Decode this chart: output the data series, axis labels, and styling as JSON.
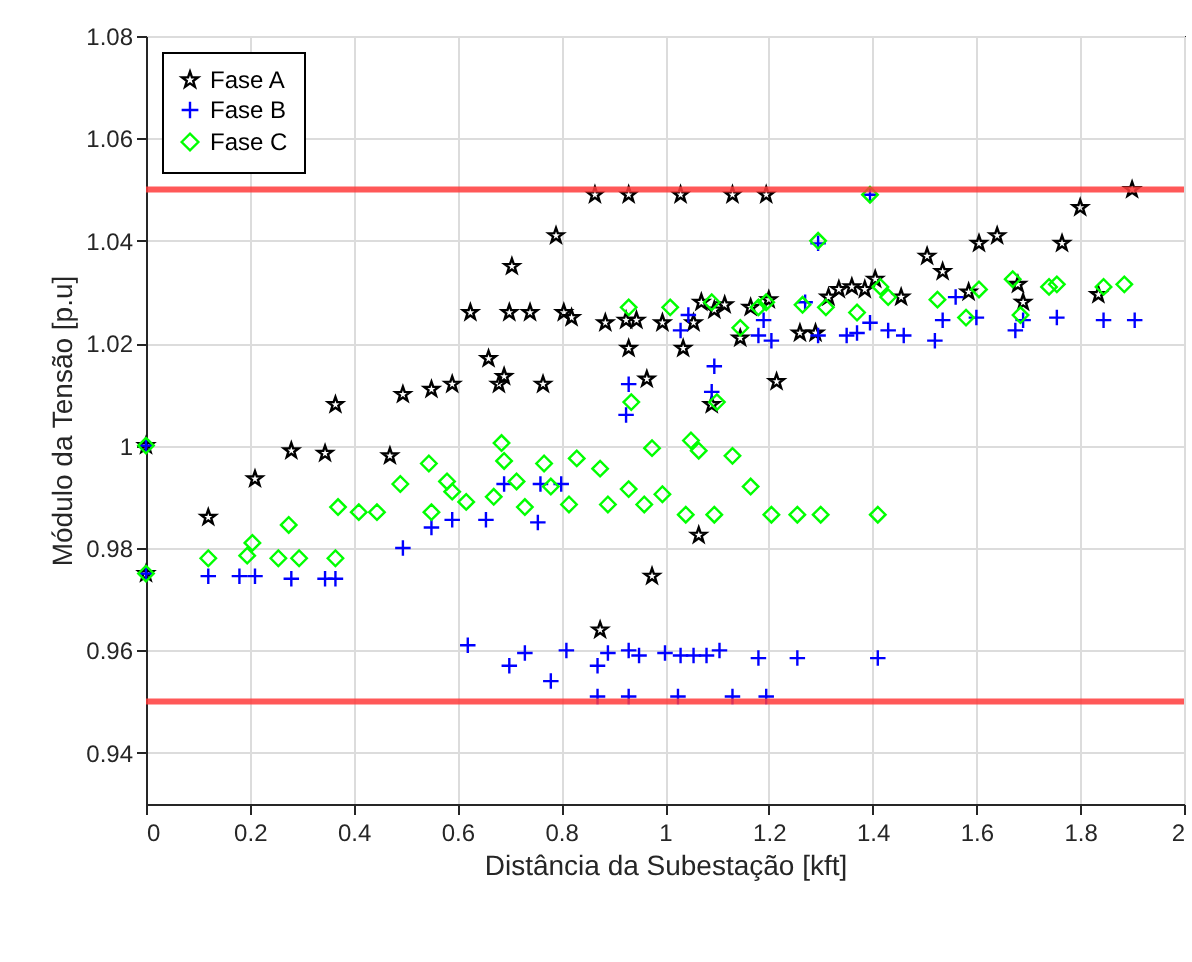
{
  "chart_data": {
    "type": "scatter",
    "xlabel": "Distância da Subestação [kft]",
    "ylabel": "Módulo da Tensão [p.u]",
    "xlim": [
      0,
      2
    ],
    "xticks": [
      0,
      0.2,
      0.4,
      0.6,
      0.8,
      1,
      1.2,
      1.4,
      1.6,
      1.8,
      2
    ],
    "ylim": [
      0.93,
      1.08
    ],
    "yticks": [
      0.94,
      0.96,
      0.98,
      1,
      1.02,
      1.04,
      1.06,
      1.08
    ],
    "grid": true,
    "legend": "top left",
    "ref_lines": [
      {
        "axis": "y",
        "value": 1.05,
        "color": "#ff3b3b"
      },
      {
        "axis": "y",
        "value": 0.95,
        "color": "#ff3b3b"
      }
    ],
    "series": [
      {
        "name": "Fase A",
        "color": "#000000",
        "marker": "star",
        "x": [
          0,
          0,
          0.12,
          0.21,
          0.28,
          0.345,
          0.365,
          0.47,
          0.495,
          0.55,
          0.59,
          0.625,
          0.66,
          0.68,
          0.69,
          0.7,
          0.705,
          0.74,
          0.765,
          0.79,
          0.805,
          0.82,
          0.865,
          0.885,
          0.875,
          0.925,
          0.93,
          0.93,
          0.945,
          0.965,
          0.975,
          0.995,
          1.03,
          1.035,
          1.055,
          1.065,
          1.07,
          1.09,
          1.095,
          1.115,
          1.13,
          1.145,
          1.165,
          1.195,
          1.2,
          1.215,
          1.26,
          1.29,
          1.315,
          1.335,
          1.36,
          1.385,
          1.405,
          1.455,
          1.505,
          1.535,
          1.585,
          1.605,
          1.64,
          1.68,
          1.69,
          1.765,
          1.8,
          1.835,
          1.9
        ],
        "values": [
          1,
          0.975,
          0.986,
          0.9935,
          0.999,
          0.9985,
          1.008,
          0.998,
          1.01,
          1.011,
          1.012,
          1.026,
          1.017,
          1.012,
          1.0135,
          1.026,
          1.035,
          1.026,
          1.012,
          1.041,
          1.026,
          1.025,
          1.049,
          1.024,
          0.964,
          1.0245,
          1.049,
          1.019,
          1.0245,
          1.013,
          0.9745,
          1.024,
          1.049,
          1.019,
          1.024,
          0.9825,
          1.028,
          1.008,
          1.0265,
          1.0275,
          1.049,
          1.021,
          1.027,
          1.049,
          1.0285,
          1.0125,
          1.022,
          1.022,
          1.029,
          1.0305,
          1.031,
          1.0305,
          1.0325,
          1.029,
          1.037,
          1.034,
          1.03,
          1.0395,
          1.041,
          1.0315,
          1.028,
          1.0395,
          1.0465,
          1.0295,
          1.05
        ]
      },
      {
        "name": "Fase B",
        "color": "#0000ff",
        "marker": "cross",
        "x": [
          0,
          0,
          0.12,
          0.18,
          0.21,
          0.28,
          0.345,
          0.365,
          0.495,
          0.55,
          0.59,
          0.69,
          0.76,
          0.655,
          0.8,
          0.755,
          0.62,
          0.7,
          0.73,
          0.78,
          0.81,
          0.87,
          0.87,
          0.89,
          0.93,
          0.93,
          0.95,
          1,
          1.025,
          1.03,
          1.055,
          1.08,
          1.105,
          1.13,
          1.18,
          1.195,
          1.255,
          1.41,
          0.93,
          1.09,
          1.095,
          0.925,
          1.295,
          1.395,
          1.03,
          1.18,
          1.205,
          1.19,
          1.27,
          1.295,
          1.35,
          1.37,
          1.395,
          1.46,
          1.52,
          1.535,
          1.56,
          1.6,
          1.675,
          1.69,
          1.755,
          1.905,
          1.845,
          1.43,
          1.045
        ],
        "values": [
          1,
          0.975,
          0.9745,
          0.9745,
          0.9745,
          0.974,
          0.974,
          0.974,
          0.98,
          0.984,
          0.9855,
          0.9925,
          0.9925,
          0.9855,
          0.9925,
          0.985,
          0.961,
          0.957,
          0.9595,
          0.954,
          0.96,
          0.957,
          0.951,
          0.9595,
          0.96,
          0.951,
          0.959,
          0.9595,
          0.951,
          0.959,
          0.959,
          0.959,
          0.96,
          0.951,
          0.9585,
          0.951,
          0.9585,
          0.9585,
          1.012,
          1.0105,
          1.0155,
          1.006,
          1.0395,
          1.049,
          1.0225,
          1.0215,
          1.0205,
          1.0245,
          1.028,
          1.0215,
          1.0215,
          1.022,
          1.024,
          1.0215,
          1.0205,
          1.0245,
          1.029,
          1.025,
          1.0225,
          1.0245,
          1.025,
          1.0245,
          1.0245,
          1.0225,
          1.0255
        ]
      },
      {
        "name": "Fase C",
        "color": "#00ff00",
        "marker": "diamond",
        "x": [
          0,
          0,
          0.12,
          0.205,
          0.195,
          0.255,
          0.275,
          0.295,
          0.37,
          0.365,
          0.41,
          0.445,
          0.49,
          0.545,
          0.55,
          0.58,
          0.59,
          0.617,
          0.67,
          0.685,
          0.69,
          0.714,
          0.73,
          0.767,
          0.78,
          0.815,
          0.83,
          0.875,
          0.89,
          0.93,
          0.93,
          0.935,
          0.96,
          0.975,
          0.995,
          1.04,
          1.05,
          1.065,
          1.1,
          1.095,
          1.13,
          1.165,
          1.205,
          1.145,
          1.18,
          1.195,
          1.255,
          1.3,
          1.295,
          1.41,
          1.395,
          1.265,
          1.31,
          1.37,
          1.415,
          1.43,
          1.525,
          1.58,
          1.605,
          1.67,
          1.685,
          1.74,
          1.755,
          1.845,
          1.885,
          1.09,
          1.01
        ],
        "values": [
          1,
          0.975,
          0.978,
          0.981,
          0.9785,
          0.978,
          0.9845,
          0.978,
          0.988,
          0.978,
          0.987,
          0.987,
          0.9925,
          0.9965,
          0.987,
          0.993,
          0.991,
          0.989,
          0.99,
          1.0005,
          0.997,
          0.993,
          0.988,
          0.9965,
          0.992,
          0.9885,
          0.9975,
          0.9955,
          0.9885,
          0.9915,
          1.027,
          1.0085,
          0.9885,
          0.9995,
          0.9905,
          0.9865,
          1.001,
          0.999,
          1.0085,
          0.9865,
          0.998,
          0.992,
          0.9865,
          1.023,
          1.027,
          1.028,
          0.9865,
          0.9865,
          1.04,
          0.9865,
          1.049,
          1.0275,
          1.027,
          1.026,
          1.031,
          1.029,
          1.0285,
          1.025,
          1.0305,
          1.0325,
          1.0255,
          1.031,
          1.0315,
          1.031,
          1.0315,
          1.028,
          1.027
        ]
      }
    ]
  }
}
